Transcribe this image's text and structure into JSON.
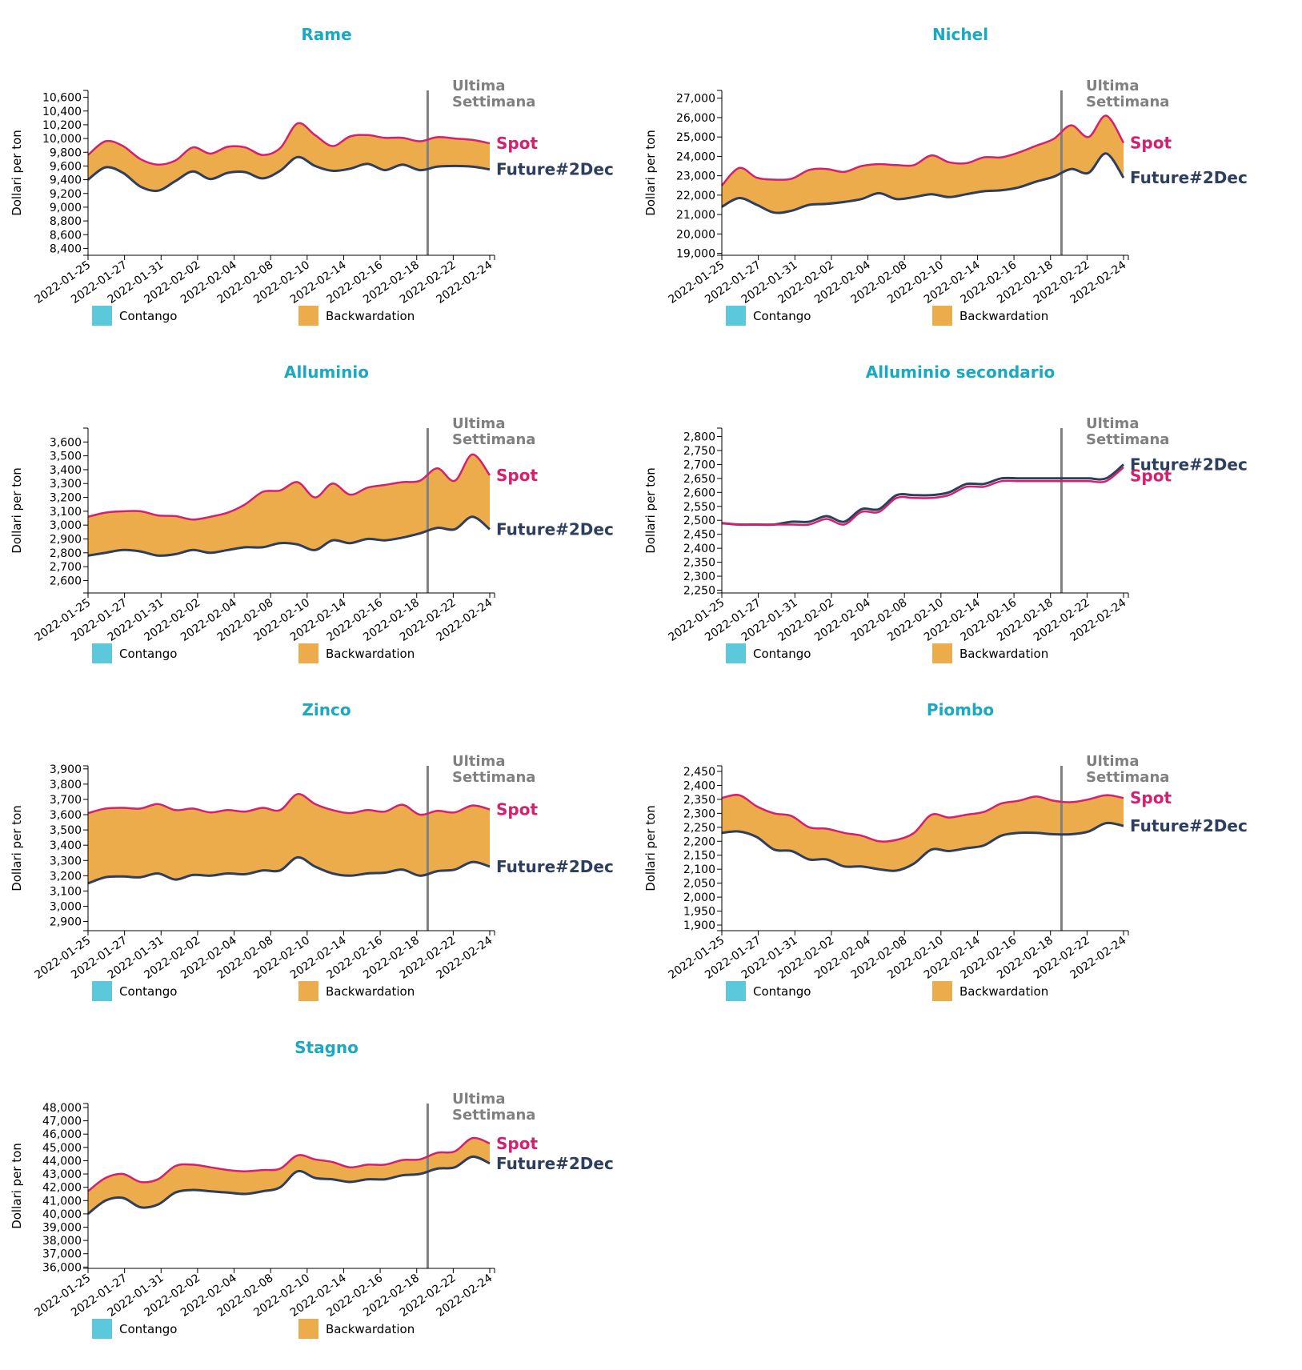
{
  "common": {
    "ylabel": "Dollari per ton",
    "week_line": [
      "Ultima",
      "Settimana"
    ],
    "spot_label": "Spot",
    "future_label": "Future#2Dec",
    "legend": [
      "Contango",
      "Backwardation"
    ],
    "dates": [
      "2022-01-25",
      "2022-01-27",
      "2022-01-31",
      "2022-02-02",
      "2022-02-04",
      "2022-02-08",
      "2022-02-10",
      "2022-02-14",
      "2022-02-16",
      "2022-02-18",
      "2022-02-22",
      "2022-02-24"
    ],
    "week_start_index": 9.3,
    "colors": {
      "title": "#1aa9c4",
      "spot": "#d6206f",
      "future": "#2d3e5e",
      "contango": "#5bc8dc",
      "backwardation": "#edac4c",
      "week_line": "#808080"
    }
  },
  "chart_data": [
    {
      "type": "area",
      "title": "Rame",
      "ylim": [
        8300,
        10700
      ],
      "yticks": [
        8400,
        8600,
        8800,
        9000,
        9200,
        9400,
        9600,
        9800,
        10000,
        10200,
        10400,
        10600
      ],
      "ytick_labels": [
        "8,400",
        "8,600",
        "8,800",
        "9,000",
        "9,200",
        "9,400",
        "9,600",
        "9,800",
        "10,000",
        "10,200",
        "10,400",
        "10,600"
      ],
      "series": [
        {
          "name": "Spot",
          "values": [
            9760,
            9960,
            9890,
            9700,
            9620,
            9680,
            9870,
            9780,
            9880,
            9870,
            9760,
            9860,
            10220,
            10050,
            9890,
            10030,
            10050,
            10010,
            10010,
            9960,
            10020,
            10000,
            9980,
            9930
          ]
        },
        {
          "name": "Future#2Dec",
          "values": [
            9400,
            9580,
            9500,
            9300,
            9240,
            9380,
            9520,
            9410,
            9500,
            9510,
            9420,
            9530,
            9730,
            9600,
            9530,
            9560,
            9630,
            9540,
            9620,
            9540,
            9590,
            9600,
            9590,
            9550
          ]
        }
      ]
    },
    {
      "type": "area",
      "title": "Nichel",
      "ylim": [
        18900,
        27400
      ],
      "yticks": [
        19000,
        20000,
        21000,
        22000,
        23000,
        24000,
        25000,
        26000,
        27000
      ],
      "ytick_labels": [
        "19,000",
        "20,000",
        "21,000",
        "22,000",
        "23,000",
        "24,000",
        "25,000",
        "26,000",
        "27,000"
      ],
      "series": [
        {
          "name": "Spot",
          "values": [
            22500,
            23400,
            22900,
            22800,
            22850,
            23300,
            23350,
            23200,
            23500,
            23600,
            23550,
            23550,
            24050,
            23700,
            23650,
            23950,
            23950,
            24200,
            24550,
            24900,
            25600,
            25000,
            26100,
            24700
          ]
        },
        {
          "name": "Future#2Dec",
          "values": [
            21400,
            21850,
            21500,
            21100,
            21200,
            21500,
            21550,
            21650,
            21800,
            22100,
            21800,
            21900,
            22050,
            21900,
            22050,
            22200,
            22250,
            22400,
            22700,
            22950,
            23350,
            23150,
            24150,
            22900
          ]
        }
      ]
    },
    {
      "type": "area",
      "title": "Alluminio",
      "ylim": [
        2510,
        3700
      ],
      "yticks": [
        2600,
        2700,
        2800,
        2900,
        3000,
        3100,
        3200,
        3300,
        3400,
        3500,
        3600
      ],
      "ytick_labels": [
        "2,600",
        "2,700",
        "2,800",
        "2,900",
        "3,000",
        "3,100",
        "3,200",
        "3,300",
        "3,400",
        "3,500",
        "3,600"
      ],
      "series": [
        {
          "name": "Spot",
          "values": [
            3060,
            3090,
            3100,
            3100,
            3070,
            3065,
            3040,
            3060,
            3090,
            3150,
            3240,
            3250,
            3310,
            3200,
            3300,
            3220,
            3270,
            3290,
            3310,
            3320,
            3410,
            3320,
            3510,
            3360
          ]
        },
        {
          "name": "Future#2Dec",
          "values": [
            2780,
            2800,
            2820,
            2810,
            2780,
            2790,
            2820,
            2800,
            2820,
            2840,
            2840,
            2870,
            2860,
            2820,
            2890,
            2870,
            2900,
            2890,
            2910,
            2940,
            2980,
            2970,
            3060,
            2970
          ]
        }
      ]
    },
    {
      "type": "line",
      "title": "Alluminio secondario",
      "ylim": [
        2240,
        2830
      ],
      "yticks": [
        2250,
        2300,
        2350,
        2400,
        2450,
        2500,
        2550,
        2600,
        2650,
        2700,
        2750,
        2800
      ],
      "ytick_labels": [
        "2,250",
        "2,300",
        "2,350",
        "2,400",
        "2,450",
        "2,500",
        "2,550",
        "2,600",
        "2,650",
        "2,700",
        "2,750",
        "2,800"
      ],
      "series": [
        {
          "name": "Spot",
          "values": [
            2490,
            2485,
            2485,
            2485,
            2485,
            2485,
            2505,
            2485,
            2530,
            2530,
            2580,
            2580,
            2580,
            2590,
            2620,
            2620,
            2640,
            2640,
            2640,
            2640,
            2640,
            2640,
            2640,
            2690
          ]
        },
        {
          "name": "Future#2Dec",
          "values": [
            2490,
            2485,
            2485,
            2485,
            2495,
            2495,
            2515,
            2495,
            2540,
            2540,
            2590,
            2590,
            2590,
            2600,
            2630,
            2630,
            2650,
            2650,
            2650,
            2650,
            2650,
            2650,
            2650,
            2700
          ]
        }
      ]
    },
    {
      "type": "area",
      "title": "Zinco",
      "ylim": [
        2840,
        3920
      ],
      "yticks": [
        2900,
        3000,
        3100,
        3200,
        3300,
        3400,
        3500,
        3600,
        3700,
        3800,
        3900
      ],
      "ytick_labels": [
        "2,900",
        "3,000",
        "3,100",
        "3,200",
        "3,300",
        "3,400",
        "3,500",
        "3,600",
        "3,700",
        "3,800",
        "3,900"
      ],
      "series": [
        {
          "name": "Spot",
          "values": [
            3610,
            3640,
            3645,
            3640,
            3670,
            3630,
            3640,
            3615,
            3630,
            3620,
            3645,
            3630,
            3735,
            3670,
            3630,
            3610,
            3630,
            3620,
            3665,
            3600,
            3625,
            3615,
            3660,
            3635
          ]
        },
        {
          "name": "Future#2Dec",
          "values": [
            3150,
            3190,
            3195,
            3190,
            3215,
            3175,
            3205,
            3200,
            3215,
            3210,
            3235,
            3235,
            3320,
            3260,
            3215,
            3200,
            3215,
            3220,
            3240,
            3200,
            3230,
            3240,
            3290,
            3260
          ]
        }
      ]
    },
    {
      "type": "area",
      "title": "Piombo",
      "ylim": [
        1880,
        2470
      ],
      "yticks": [
        1900,
        1950,
        2000,
        2050,
        2100,
        2150,
        2200,
        2250,
        2300,
        2350,
        2400,
        2450
      ],
      "ytick_labels": [
        "1,900",
        "1,950",
        "2,000",
        "2,050",
        "2,100",
        "2,150",
        "2,200",
        "2,250",
        "2,300",
        "2,350",
        "2,400",
        "2,450"
      ],
      "series": [
        {
          "name": "Spot",
          "values": [
            2355,
            2365,
            2325,
            2300,
            2290,
            2250,
            2245,
            2230,
            2220,
            2200,
            2205,
            2230,
            2295,
            2285,
            2295,
            2305,
            2335,
            2345,
            2360,
            2345,
            2340,
            2350,
            2365,
            2355
          ]
        },
        {
          "name": "Future#2Dec",
          "values": [
            2230,
            2235,
            2215,
            2170,
            2165,
            2135,
            2135,
            2110,
            2110,
            2100,
            2095,
            2120,
            2170,
            2165,
            2175,
            2185,
            2220,
            2230,
            2230,
            2225,
            2225,
            2235,
            2265,
            2255
          ]
        }
      ]
    },
    {
      "type": "area",
      "title": "Stagno",
      "ylim": [
        35900,
        48300
      ],
      "yticks": [
        36000,
        37000,
        38000,
        39000,
        40000,
        41000,
        42000,
        43000,
        44000,
        45000,
        46000,
        47000,
        48000
      ],
      "ytick_labels": [
        "36,000",
        "37,000",
        "38,000",
        "39,000",
        "40,000",
        "41,000",
        "42,000",
        "43,000",
        "44,000",
        "45,000",
        "46,000",
        "47,000",
        "48,000"
      ],
      "series": [
        {
          "name": "Spot",
          "values": [
            41700,
            42700,
            43000,
            42400,
            42600,
            43600,
            43700,
            43500,
            43300,
            43200,
            43300,
            43400,
            44400,
            44100,
            43900,
            43500,
            43700,
            43700,
            44050,
            44100,
            44600,
            44700,
            45700,
            45300
          ]
        },
        {
          "name": "Future#2Dec",
          "values": [
            40000,
            41000,
            41200,
            40500,
            40700,
            41600,
            41800,
            41700,
            41600,
            41500,
            41700,
            42000,
            43200,
            42700,
            42600,
            42400,
            42600,
            42600,
            42900,
            43000,
            43400,
            43500,
            44300,
            43800
          ]
        }
      ]
    }
  ]
}
